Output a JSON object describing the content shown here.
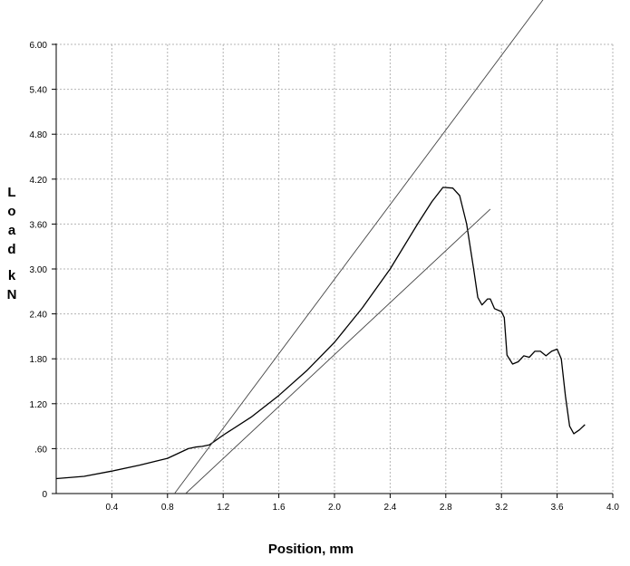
{
  "chart_data": {
    "type": "line",
    "xlabel": "Position, mm",
    "ylabel": "Load kN",
    "xlim": [
      0,
      4.0
    ],
    "ylim": [
      0,
      6.0
    ],
    "x_ticks": [
      "0.4",
      "0.8",
      "1.2",
      "1.6",
      "2.0",
      "2.4",
      "2.8",
      "3.2",
      "3.6",
      "4.0"
    ],
    "y_ticks": [
      "0",
      ".60",
      "1.20",
      "1.80",
      "2.40",
      "3.00",
      "3.60",
      "4.20",
      "4.80",
      "5.40",
      "6.00"
    ],
    "grid": true,
    "colors": {
      "curve": "#000000",
      "line": "#444444",
      "grid": "#b4b4b4"
    },
    "series": [
      {
        "values": [
          [
            0,
            0.2
          ],
          [
            0.2,
            0.23
          ],
          [
            0.4,
            0.3
          ],
          [
            0.6,
            0.38
          ],
          [
            0.8,
            0.47
          ],
          [
            0.95,
            0.6
          ],
          [
            1.0,
            0.62
          ],
          [
            1.05,
            0.63
          ],
          [
            1.1,
            0.65
          ],
          [
            1.2,
            0.78
          ],
          [
            1.4,
            1.02
          ],
          [
            1.6,
            1.31
          ],
          [
            1.8,
            1.64
          ],
          [
            2.0,
            2.02
          ],
          [
            2.2,
            2.48
          ],
          [
            2.4,
            3.0
          ],
          [
            2.6,
            3.61
          ],
          [
            2.7,
            3.9
          ],
          [
            2.78,
            4.09
          ],
          [
            2.85,
            4.08
          ],
          [
            2.9,
            3.98
          ],
          [
            2.95,
            3.6
          ],
          [
            3.0,
            3.0
          ],
          [
            3.03,
            2.62
          ],
          [
            3.06,
            2.52
          ],
          [
            3.1,
            2.6
          ],
          [
            3.12,
            2.6
          ],
          [
            3.15,
            2.47
          ],
          [
            3.2,
            2.43
          ],
          [
            3.22,
            2.35
          ],
          [
            3.24,
            1.85
          ],
          [
            3.28,
            1.73
          ],
          [
            3.32,
            1.76
          ],
          [
            3.36,
            1.84
          ],
          [
            3.4,
            1.82
          ],
          [
            3.44,
            1.9
          ],
          [
            3.48,
            1.9
          ],
          [
            3.52,
            1.84
          ],
          [
            3.56,
            1.9
          ],
          [
            3.6,
            1.93
          ],
          [
            3.63,
            1.8
          ],
          [
            3.66,
            1.3
          ],
          [
            3.69,
            0.9
          ],
          [
            3.72,
            0.8
          ],
          [
            3.76,
            0.85
          ],
          [
            3.8,
            0.92
          ]
        ]
      },
      {
        "values": [
          [
            0.85,
            0
          ],
          [
            3.5,
            6.6
          ]
        ]
      },
      {
        "values": [
          [
            0.93,
            0
          ],
          [
            3.12,
            3.8
          ]
        ]
      }
    ]
  }
}
